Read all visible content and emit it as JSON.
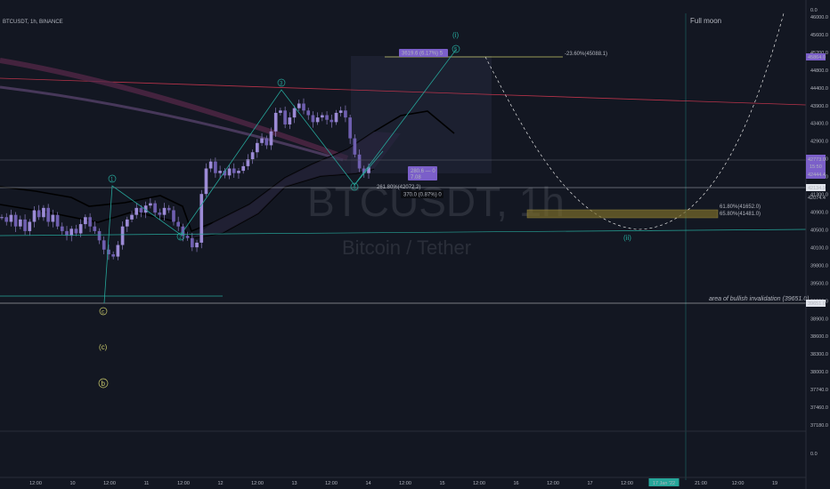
{
  "header": {
    "symbol_line": "BTCUSDT, 1h, BINANCE"
  },
  "watermark": {
    "symbol": "BTCUSDT, 1h",
    "name": "Bitcoin / Tether"
  },
  "annotations": {
    "full_moon": "Full moon",
    "invalidation": "area of bullish invalidation (39651.0)",
    "fib_top": "-23.60%(45088.1)",
    "fib_mid": "261.80%(42072.2)",
    "zone_label_1": "61.80%(41652.0)",
    "zone_label_2": "65.80%(41481.0)",
    "measure_top": "3619.6 (6.17%) 5",
    "measure_mid": "280.6 — 0\n7.08",
    "measure_low": "370.0 (0.87%) 0"
  },
  "wave_labels": {
    "i_top": "(i)",
    "five": "5",
    "three": "3",
    "one": "1",
    "two": "2",
    "four": "4",
    "ii": "(ii)",
    "c_circle": "c",
    "c_paren": "(c)",
    "b_circle": "b"
  },
  "price_tags": {
    "p1": "45864.0",
    "p2": "42773.0",
    "p2b": "15:50",
    "p3": "42444.4",
    "p4": "42134.9",
    "p5": "42074.4",
    "p6": "39651.0"
  },
  "colors": {
    "background": "#131722",
    "up": "#9c8bd6",
    "accent_wave": "#26a69a",
    "fib": "#c8c86a",
    "invalidation": "#e0e0e0",
    "price_tag": "#7b5fc9"
  },
  "chart_data": {
    "type": "candlestick",
    "title": "BTCUSDT, 1h",
    "subtitle": "Bitcoin / Tether",
    "y_ticks": [
      "46000.0",
      "45600.0",
      "45200.0",
      "44800.0",
      "44400.0",
      "43900.0",
      "43400.0",
      "42900.0",
      "42500.0",
      "41700.0",
      "41300.0",
      "40900.0",
      "40500.0",
      "40100.0",
      "39800.0",
      "39500.0",
      "39200.0",
      "38900.0",
      "38600.0",
      "38300.0",
      "38000.0",
      "37740.0",
      "37460.0",
      "37180.0"
    ],
    "y_axis_extra": [
      "0.0",
      "0.0"
    ],
    "x_ticks": [
      "12:00",
      "10",
      "12:00",
      "11",
      "12:00",
      "12",
      "12:00",
      "13",
      "12:00",
      "14",
      "12:00",
      "15",
      "12:00",
      "16",
      "12:00",
      "17",
      "12:00",
      "17 Jan '22",
      "21:00",
      "12:00",
      "19"
    ],
    "ylim": [
      37180,
      46000
    ],
    "close_path": [
      41700,
      41600,
      41750,
      41500,
      41650,
      41400,
      41600,
      41850,
      41700,
      41900,
      41600,
      41750,
      41500,
      41400,
      41300,
      41450,
      41350,
      41550,
      41700,
      41500,
      41400,
      41200,
      41000,
      40900,
      40850,
      41100,
      41500,
      41650,
      41750,
      41900,
      41800,
      41950,
      42000,
      41800,
      41750,
      41900,
      41850,
      41600,
      41500,
      41300,
      41250,
      41050,
      41150,
      42200,
      42750,
      42900,
      42650,
      42700,
      42600,
      42750,
      42650,
      42700,
      42800,
      42950,
      43100,
      43300,
      43400,
      43250,
      43550,
      43950,
      44000,
      43700,
      43850,
      44050,
      44150,
      44000,
      43900,
      43750,
      43850,
      43900,
      43800,
      43750,
      43950,
      44000,
      43850,
      43400,
      43050,
      42750,
      42650,
      42773
    ]
  }
}
